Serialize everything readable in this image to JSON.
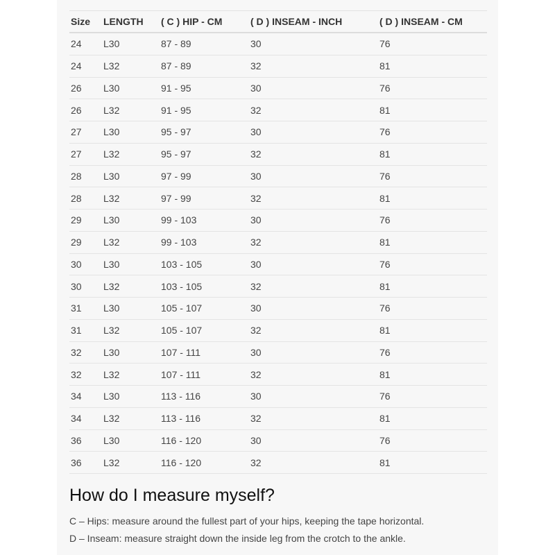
{
  "table": {
    "headers": [
      "Size",
      "LENGTH",
      "( C ) HIP - CM",
      "( D ) INSEAM - INCH",
      "( D ) INSEAM - CM"
    ],
    "rows": [
      [
        "24",
        "L30",
        "87 - 89",
        "30",
        "76"
      ],
      [
        "24",
        "L32",
        "87 - 89",
        "32",
        "81"
      ],
      [
        "26",
        "L30",
        "91 - 95",
        "30",
        "76"
      ],
      [
        "26",
        "L32",
        "91 - 95",
        "32",
        "81"
      ],
      [
        "27",
        "L30",
        "95 - 97",
        "30",
        "76"
      ],
      [
        "27",
        "L32",
        "95 - 97",
        "32",
        "81"
      ],
      [
        "28",
        "L30",
        "97 - 99",
        "30",
        "76"
      ],
      [
        "28",
        "L32",
        "97 - 99",
        "32",
        "81"
      ],
      [
        "29",
        "L30",
        "99 - 103",
        "30",
        "76"
      ],
      [
        "29",
        "L32",
        "99 - 103",
        "32",
        "81"
      ],
      [
        "30",
        "L30",
        "103 - 105",
        "30",
        "76"
      ],
      [
        "30",
        "L32",
        "103 - 105",
        "32",
        "81"
      ],
      [
        "31",
        "L30",
        "105 - 107",
        "30",
        "76"
      ],
      [
        "31",
        "L32",
        "105 - 107",
        "32",
        "81"
      ],
      [
        "32",
        "L30",
        "107 - 111",
        "30",
        "76"
      ],
      [
        "32",
        "L32",
        "107 - 111",
        "32",
        "81"
      ],
      [
        "34",
        "L30",
        "113 - 116",
        "30",
        "76"
      ],
      [
        "34",
        "L32",
        "113 - 116",
        "32",
        "81"
      ],
      [
        "36",
        "L30",
        "116 - 120",
        "30",
        "76"
      ],
      [
        "36",
        "L32",
        "116 - 120",
        "32",
        "81"
      ]
    ]
  },
  "guide": {
    "title": "How do I measure myself?",
    "hips": "C – Hips: measure around the fullest part of your hips, keeping the tape horizontal.",
    "inseam": "D – Inseam: measure straight down the inside leg from the crotch to the ankle."
  }
}
